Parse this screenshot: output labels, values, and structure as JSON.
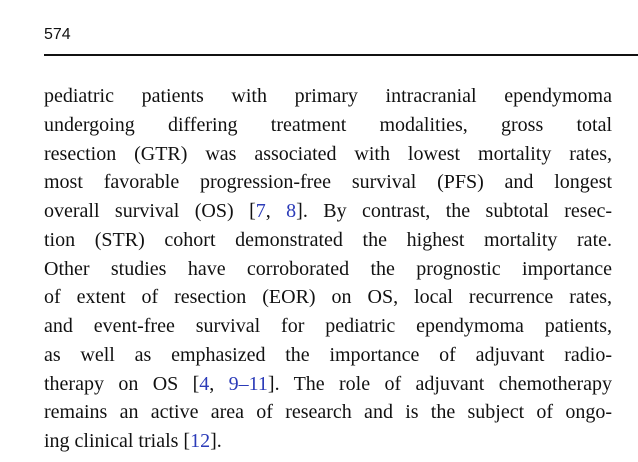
{
  "header": {
    "page_number": "574"
  },
  "body": {
    "link_color": "#2b3bb8",
    "lines": [
      [
        {
          "text": "pediatric patients with primary intracranial ependymoma"
        }
      ],
      [
        {
          "text": "undergoing differing treatment modalities, gross total"
        }
      ],
      [
        {
          "text": "resection (GTR) was associated with lowest mortality rates,"
        }
      ],
      [
        {
          "text": "most favorable progression-free survival (PFS) and longest"
        }
      ],
      [
        {
          "text": "overall survival (OS) ["
        },
        {
          "text": "7",
          "cite": true
        },
        {
          "text": ", "
        },
        {
          "text": "8",
          "cite": true
        },
        {
          "text": "]. By contrast, the subtotal resec-"
        }
      ],
      [
        {
          "text": "tion (STR) cohort demonstrated the highest mortality rate."
        }
      ],
      [
        {
          "text": "Other studies have corroborated the prognostic importance"
        }
      ],
      [
        {
          "text": "of extent of resection (EOR) on OS, local recurrence rates,"
        }
      ],
      [
        {
          "text": "and event-free survival for pediatric ependymoma patients,"
        }
      ],
      [
        {
          "text": "as well as emphasized the importance of adjuvant radio-"
        }
      ],
      [
        {
          "text": "therapy on OS ["
        },
        {
          "text": "4",
          "cite": true
        },
        {
          "text": ", "
        },
        {
          "text": "9–11",
          "cite": true
        },
        {
          "text": "]. The role of adjuvant chemotherapy"
        }
      ],
      [
        {
          "text": "remains an active area of research and is the subject of ongo-"
        }
      ],
      [
        {
          "text": "ing clinical trials ["
        },
        {
          "text": "12",
          "cite": true
        },
        {
          "text": "]."
        }
      ]
    ]
  }
}
